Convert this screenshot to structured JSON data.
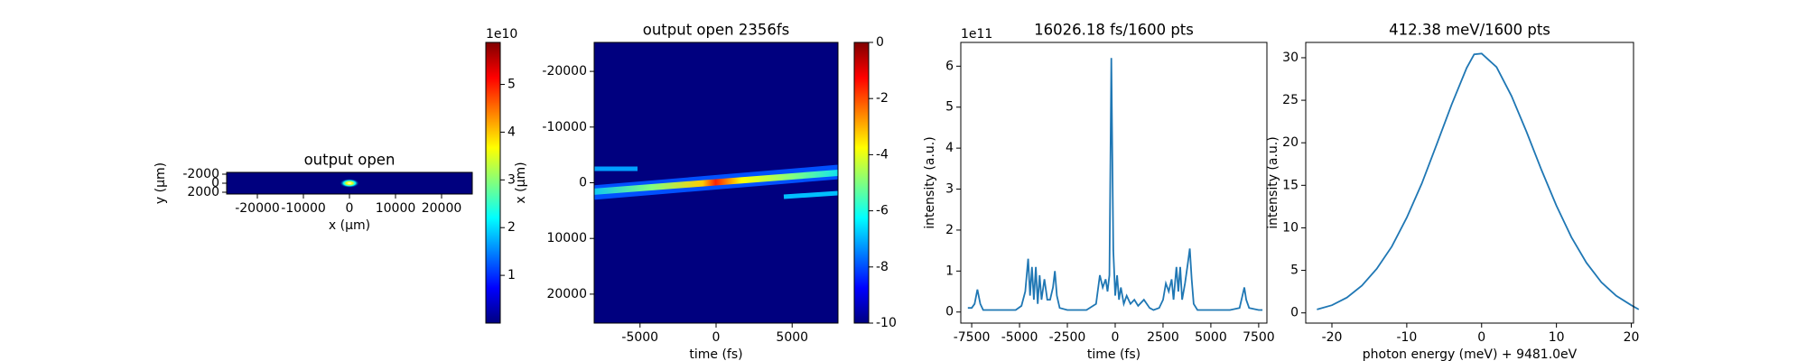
{
  "chart_data": [
    {
      "type": "heatmap",
      "title": "output open",
      "xlabel": "x (μm)",
      "ylabel": "y (μm)",
      "xlim": [
        -26667,
        26667
      ],
      "xticks": [
        -20000,
        -10000,
        0,
        10000,
        20000
      ],
      "ylim": [
        2400,
        -2400
      ],
      "yticks": [
        -2000,
        0,
        2000
      ],
      "colorbar": {
        "lim": [
          0,
          5.88
        ],
        "ticks": [
          1,
          2,
          3,
          4,
          5
        ],
        "offset_label": "1e10"
      }
    },
    {
      "type": "heatmap",
      "title": "output open 2356fs",
      "xlabel": "time (fs)",
      "ylabel": "x (μm)",
      "xlim": [
        -8013,
        8013
      ],
      "xticks": [
        -5000,
        0,
        5000
      ],
      "ylim": [
        25200,
        -25200
      ],
      "yticks": [
        -20000,
        -10000,
        0,
        10000,
        20000
      ],
      "colorbar": {
        "lim": [
          -10,
          0
        ],
        "ticks": [
          0,
          -2,
          -4,
          -6,
          -8,
          -10
        ]
      }
    },
    {
      "type": "line",
      "title": "16026.18 fs/1600 pts",
      "xlabel": "time (fs)",
      "ylabel": "intensity (a.u.)",
      "offset_label": "1e11",
      "color": "#1f77b4",
      "xlim": [
        -8070,
        7930
      ],
      "xticks": [
        -7500,
        -5000,
        -2500,
        0,
        2500,
        5000,
        7500
      ],
      "ylim": [
        -0.27,
        6.58
      ],
      "yticks": [
        0,
        1,
        2,
        3,
        4,
        5,
        6
      ],
      "x": [
        -7700,
        -7500,
        -7350,
        -7200,
        -7050,
        -6900,
        -6000,
        -5200,
        -4900,
        -4700,
        -4550,
        -4450,
        -4350,
        -4250,
        -4150,
        -4050,
        -3950,
        -3850,
        -3700,
        -3550,
        -3400,
        -3250,
        -3150,
        -3050,
        -2900,
        -2500,
        -1500,
        -1000,
        -800,
        -650,
        -500,
        -400,
        -300,
        -200,
        -100,
        0,
        100,
        200,
        300,
        450,
        600,
        800,
        1000,
        1200,
        1500,
        1800,
        2000,
        2300,
        2500,
        2650,
        2800,
        2950,
        3050,
        3200,
        3300,
        3400,
        3500,
        3650,
        3800,
        3900,
        4000,
        4100,
        4300,
        5000,
        6000,
        6500,
        6650,
        6750,
        6850,
        7000,
        7500,
        7700
      ],
      "values": [
        0.1,
        0.1,
        0.2,
        0.55,
        0.2,
        0.05,
        0.05,
        0.05,
        0.15,
        0.5,
        1.3,
        0.4,
        1.1,
        0.3,
        1.1,
        0.2,
        0.9,
        0.3,
        0.8,
        0.3,
        0.3,
        0.6,
        1.0,
        0.4,
        0.1,
        0.05,
        0.05,
        0.2,
        0.9,
        0.6,
        0.8,
        0.5,
        0.9,
        6.2,
        1.5,
        0.4,
        0.9,
        0.3,
        0.6,
        0.2,
        0.4,
        0.2,
        0.3,
        0.15,
        0.3,
        0.1,
        0.05,
        0.1,
        0.3,
        0.7,
        0.5,
        0.8,
        0.3,
        1.1,
        0.5,
        1.1,
        0.3,
        0.7,
        1.2,
        1.55,
        0.8,
        0.2,
        0.05,
        0.05,
        0.05,
        0.1,
        0.4,
        0.6,
        0.3,
        0.1,
        0.05,
        0.05
      ]
    },
    {
      "type": "line",
      "title": "412.38 meV/1600 pts",
      "xlabel": "photon energy (meV) + 9481.0eV",
      "ylabel": "intensity (a.u.)",
      "color": "#1f77b4",
      "xlim": [
        -23.5,
        20.3
      ],
      "xticks": [
        -20,
        -10,
        0,
        10,
        20
      ],
      "ylim": [
        -1.2,
        31.8
      ],
      "yticks": [
        0,
        5,
        10,
        15,
        20,
        25,
        30
      ],
      "x": [
        -22,
        -20,
        -18,
        -16,
        -14,
        -12,
        -10,
        -8,
        -6,
        -4,
        -2,
        -1,
        0,
        2,
        4,
        6,
        8,
        10,
        12,
        14,
        16,
        18,
        20,
        21
      ],
      "values": [
        0.4,
        0.9,
        1.8,
        3.2,
        5.2,
        7.8,
        11.2,
        15.2,
        19.8,
        24.5,
        28.8,
        30.4,
        30.5,
        28.9,
        25.5,
        21.3,
        16.8,
        12.6,
        8.9,
        5.9,
        3.6,
        2.0,
        0.9,
        0.4
      ]
    }
  ]
}
